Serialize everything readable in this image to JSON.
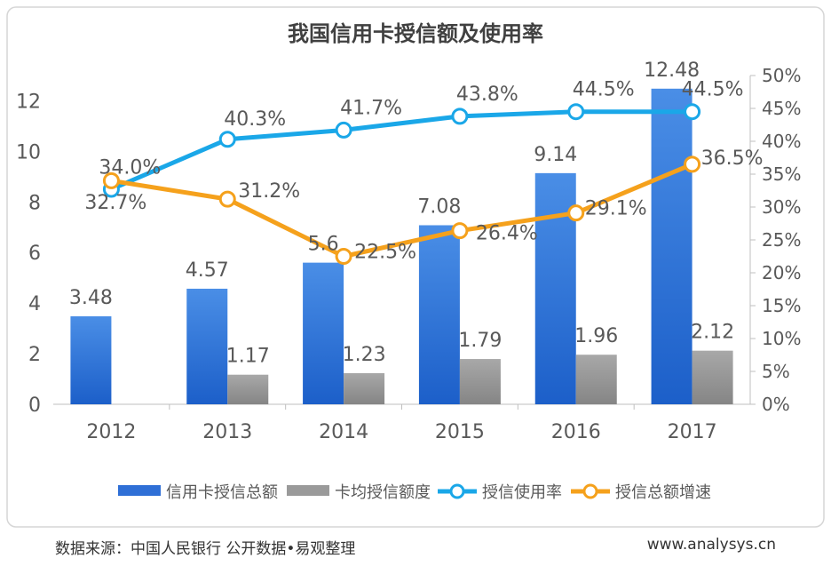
{
  "chart_data": {
    "type": "bar",
    "title": "我国信用卡授信额及使用率",
    "categories": [
      "2012",
      "2013",
      "2014",
      "2015",
      "2016",
      "2017"
    ],
    "y_left": {
      "ticks": [
        "0",
        "2",
        "4",
        "6",
        "8",
        "10",
        "12"
      ],
      "range": [
        0,
        13
      ]
    },
    "y_right": {
      "ticks": [
        "0%",
        "5%",
        "10%",
        "15%",
        "20%",
        "25%",
        "30%",
        "35%",
        "40%",
        "45%",
        "50%"
      ],
      "range": [
        0,
        50
      ]
    },
    "series": [
      {
        "name": "信用卡授信总额",
        "kind": "bar",
        "axis": "left",
        "color": "#2f6fd6",
        "values": [
          3.48,
          4.57,
          5.6,
          7.08,
          9.14,
          12.48
        ],
        "labels": [
          "3.48",
          "4.57",
          "5.6",
          "7.08",
          "9.14",
          "12.48"
        ]
      },
      {
        "name": "卡均授信额度",
        "kind": "bar",
        "axis": "left",
        "color": "#9a9a9a",
        "values": [
          null,
          1.17,
          1.23,
          1.79,
          1.96,
          2.12
        ],
        "labels": [
          "",
          "1.17",
          "1.23",
          "1.79",
          "1.96",
          "2.12"
        ]
      },
      {
        "name": "授信使用率",
        "kind": "line",
        "axis": "right",
        "color": "#1aa7e8",
        "values": [
          32.7,
          40.3,
          41.7,
          43.8,
          44.5,
          44.5
        ],
        "labels": [
          "32.7%",
          "40.3%",
          "41.7%",
          "43.8%",
          "44.5%",
          "44.5%"
        ]
      },
      {
        "name": "授信总额增速",
        "kind": "line",
        "axis": "right",
        "color": "#f5a11c",
        "values": [
          34.0,
          31.2,
          22.5,
          26.4,
          29.1,
          36.5
        ],
        "labels": [
          "34.0%",
          "31.2%",
          "22.5%",
          "26.4%",
          "29.1%",
          "36.5%"
        ]
      }
    ],
    "legend": {
      "position": "bottom"
    },
    "grid": false
  },
  "footer": {
    "source": "数据来源：中国人民银行 公开数据•易观整理",
    "url": "www.analysys.cn"
  }
}
